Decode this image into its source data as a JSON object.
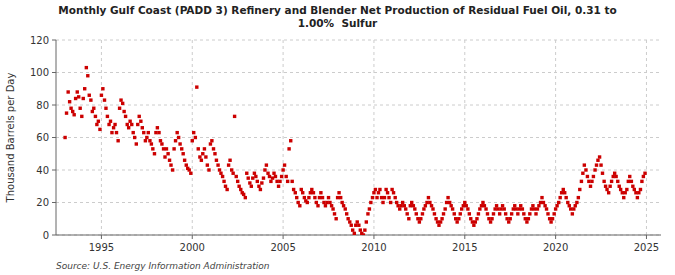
{
  "chart_data": {
    "type": "scatter",
    "title": "Monthly Gulf Coast (PADD 3) Refinery and Blender Net Production of Residual Fuel Oil, 0.31 to\n1.00%  Sulfur",
    "ylabel": "Thousand Barrels per Day",
    "annotations": [
      "Source: U.S. Energy Information Administration"
    ],
    "color": "#cc0000",
    "marker": "square",
    "grid": true,
    "xlim": [
      1992.5,
      2025.8
    ],
    "xticks": [
      1995,
      2000,
      2005,
      2010,
      2015,
      2020,
      2025
    ],
    "ylim": [
      0,
      120
    ],
    "yticks": [
      0,
      20,
      40,
      60,
      80,
      100,
      120
    ],
    "x": [
      1993.0,
      1993.08,
      1993.17,
      1993.25,
      1993.33,
      1993.42,
      1993.5,
      1993.58,
      1993.67,
      1993.75,
      1993.83,
      1993.92,
      1994.0,
      1994.08,
      1994.17,
      1994.25,
      1994.33,
      1994.42,
      1994.5,
      1994.58,
      1994.67,
      1994.75,
      1994.83,
      1994.92,
      1995.0,
      1995.08,
      1995.17,
      1995.25,
      1995.33,
      1995.42,
      1995.5,
      1995.58,
      1995.67,
      1995.75,
      1995.83,
      1995.92,
      1996.0,
      1996.08,
      1996.17,
      1996.25,
      1996.33,
      1996.42,
      1996.5,
      1996.58,
      1996.67,
      1996.75,
      1996.83,
      1996.92,
      1997.0,
      1997.08,
      1997.17,
      1997.25,
      1997.33,
      1997.42,
      1997.5,
      1997.58,
      1997.67,
      1997.75,
      1997.83,
      1997.92,
      1998.0,
      1998.08,
      1998.17,
      1998.25,
      1998.33,
      1998.42,
      1998.5,
      1998.58,
      1998.67,
      1998.75,
      1998.83,
      1998.92,
      1999.0,
      1999.08,
      1999.17,
      1999.25,
      1999.33,
      1999.42,
      1999.5,
      1999.58,
      1999.67,
      1999.75,
      1999.83,
      1999.92,
      2000.0,
      2000.08,
      2000.17,
      2000.25,
      2000.33,
      2000.42,
      2000.5,
      2000.58,
      2000.67,
      2000.75,
      2000.83,
      2000.92,
      2001.0,
      2001.08,
      2001.17,
      2001.25,
      2001.33,
      2001.42,
      2001.5,
      2001.58,
      2001.67,
      2001.75,
      2001.83,
      2001.92,
      2002.0,
      2002.08,
      2002.17,
      2002.25,
      2002.33,
      2002.42,
      2002.5,
      2002.58,
      2002.67,
      2002.75,
      2002.83,
      2002.92,
      2003.0,
      2003.08,
      2003.17,
      2003.25,
      2003.33,
      2003.42,
      2003.5,
      2003.58,
      2003.67,
      2003.75,
      2003.83,
      2003.92,
      2004.0,
      2004.08,
      2004.17,
      2004.25,
      2004.33,
      2004.42,
      2004.5,
      2004.58,
      2004.67,
      2004.75,
      2004.83,
      2004.92,
      2005.0,
      2005.08,
      2005.17,
      2005.25,
      2005.33,
      2005.42,
      2005.5,
      2005.58,
      2005.67,
      2005.75,
      2005.83,
      2005.92,
      2006.0,
      2006.08,
      2006.17,
      2006.25,
      2006.33,
      2006.42,
      2006.5,
      2006.58,
      2006.67,
      2006.75,
      2006.83,
      2006.92,
      2007.0,
      2007.08,
      2007.17,
      2007.25,
      2007.33,
      2007.42,
      2007.5,
      2007.58,
      2007.67,
      2007.75,
      2007.83,
      2007.92,
      2008.0,
      2008.08,
      2008.17,
      2008.25,
      2008.33,
      2008.42,
      2008.5,
      2008.58,
      2008.67,
      2008.75,
      2008.83,
      2008.92,
      2009.0,
      2009.08,
      2009.17,
      2009.25,
      2009.33,
      2009.42,
      2009.5,
      2009.58,
      2009.67,
      2009.75,
      2009.83,
      2009.92,
      2010.0,
      2010.08,
      2010.17,
      2010.25,
      2010.33,
      2010.42,
      2010.5,
      2010.58,
      2010.67,
      2010.75,
      2010.83,
      2010.92,
      2011.0,
      2011.08,
      2011.17,
      2011.25,
      2011.33,
      2011.42,
      2011.5,
      2011.58,
      2011.67,
      2011.75,
      2011.83,
      2011.92,
      2012.0,
      2012.08,
      2012.17,
      2012.25,
      2012.33,
      2012.42,
      2012.5,
      2012.58,
      2012.67,
      2012.75,
      2012.83,
      2012.92,
      2013.0,
      2013.08,
      2013.17,
      2013.25,
      2013.33,
      2013.42,
      2013.5,
      2013.58,
      2013.67,
      2013.75,
      2013.83,
      2013.92,
      2014.0,
      2014.08,
      2014.17,
      2014.25,
      2014.33,
      2014.42,
      2014.5,
      2014.58,
      2014.67,
      2014.75,
      2014.83,
      2014.92,
      2015.0,
      2015.08,
      2015.17,
      2015.25,
      2015.33,
      2015.42,
      2015.5,
      2015.58,
      2015.67,
      2015.75,
      2015.83,
      2015.92,
      2016.0,
      2016.08,
      2016.17,
      2016.25,
      2016.33,
      2016.42,
      2016.5,
      2016.58,
      2016.67,
      2016.75,
      2016.83,
      2016.92,
      2017.0,
      2017.08,
      2017.17,
      2017.25,
      2017.33,
      2017.42,
      2017.5,
      2017.58,
      2017.67,
      2017.75,
      2017.83,
      2017.92,
      2018.0,
      2018.08,
      2018.17,
      2018.25,
      2018.33,
      2018.42,
      2018.5,
      2018.58,
      2018.67,
      2018.75,
      2018.83,
      2018.92,
      2019.0,
      2019.08,
      2019.17,
      2019.25,
      2019.33,
      2019.42,
      2019.5,
      2019.58,
      2019.67,
      2019.75,
      2019.83,
      2019.92,
      2020.0,
      2020.08,
      2020.17,
      2020.25,
      2020.33,
      2020.42,
      2020.5,
      2020.58,
      2020.67,
      2020.75,
      2020.83,
      2020.92,
      2021.0,
      2021.08,
      2021.17,
      2021.25,
      2021.33,
      2021.42,
      2021.5,
      2021.58,
      2021.67,
      2021.75,
      2021.83,
      2021.92,
      2022.0,
      2022.08,
      2022.17,
      2022.25,
      2022.33,
      2022.42,
      2022.5,
      2022.58,
      2022.67,
      2022.75,
      2022.83,
      2022.92,
      2023.0,
      2023.08,
      2023.17,
      2023.25,
      2023.33,
      2023.42,
      2023.5,
      2023.58,
      2023.67,
      2023.75,
      2023.83,
      2023.92,
      2024.0,
      2024.08,
      2024.17,
      2024.25,
      2024.33,
      2024.42,
      2024.5,
      2024.58,
      2024.67,
      2024.75,
      2024.83,
      2024.92
    ],
    "values": [
      60,
      75,
      88,
      82,
      78,
      76,
      74,
      84,
      88,
      85,
      78,
      73,
      84,
      90,
      103,
      98,
      86,
      83,
      76,
      78,
      73,
      68,
      70,
      65,
      86,
      90,
      83,
      78,
      73,
      68,
      70,
      63,
      66,
      68,
      63,
      58,
      78,
      83,
      81,
      76,
      73,
      68,
      66,
      70,
      68,
      63,
      60,
      56,
      68,
      73,
      70,
      66,
      63,
      58,
      60,
      63,
      58,
      56,
      53,
      50,
      63,
      66,
      63,
      58,
      56,
      53,
      48,
      53,
      50,
      46,
      43,
      40,
      53,
      58,
      63,
      60,
      56,
      53,
      50,
      46,
      43,
      41,
      40,
      38,
      58,
      63,
      60,
      91,
      53,
      48,
      46,
      50,
      53,
      48,
      43,
      40,
      56,
      58,
      53,
      50,
      46,
      43,
      40,
      38,
      36,
      33,
      30,
      28,
      43,
      46,
      40,
      38,
      73,
      36,
      33,
      30,
      28,
      26,
      25,
      23,
      38,
      35,
      32,
      30,
      35,
      38,
      36,
      33,
      30,
      28,
      32,
      35,
      40,
      43,
      38,
      36,
      33,
      35,
      38,
      36,
      33,
      30,
      33,
      36,
      40,
      43,
      36,
      33,
      53,
      58,
      33,
      28,
      26,
      23,
      20,
      18,
      28,
      26,
      23,
      21,
      20,
      23,
      26,
      28,
      26,
      23,
      20,
      18,
      23,
      26,
      23,
      20,
      18,
      20,
      23,
      20,
      18,
      16,
      13,
      10,
      23,
      26,
      23,
      20,
      18,
      16,
      13,
      10,
      8,
      6,
      3,
      1,
      6,
      8,
      6,
      3,
      1,
      0,
      3,
      8,
      13,
      16,
      20,
      23,
      26,
      28,
      23,
      26,
      28,
      23,
      20,
      23,
      28,
      26,
      23,
      20,
      28,
      26,
      23,
      20,
      18,
      16,
      18,
      20,
      18,
      16,
      13,
      10,
      18,
      20,
      18,
      16,
      13,
      10,
      8,
      10,
      13,
      16,
      18,
      20,
      23,
      20,
      18,
      16,
      13,
      10,
      8,
      6,
      8,
      10,
      13,
      16,
      20,
      23,
      20,
      18,
      16,
      13,
      10,
      8,
      10,
      13,
      16,
      18,
      20,
      18,
      16,
      13,
      10,
      8,
      6,
      8,
      10,
      13,
      16,
      18,
      20,
      18,
      16,
      13,
      10,
      8,
      10,
      13,
      16,
      18,
      16,
      13,
      16,
      18,
      16,
      13,
      10,
      8,
      10,
      13,
      16,
      18,
      16,
      13,
      16,
      18,
      16,
      13,
      10,
      8,
      10,
      13,
      16,
      18,
      16,
      13,
      16,
      18,
      20,
      23,
      20,
      18,
      16,
      13,
      10,
      8,
      10,
      13,
      16,
      18,
      20,
      23,
      26,
      28,
      26,
      23,
      20,
      18,
      16,
      13,
      16,
      18,
      20,
      23,
      28,
      33,
      38,
      43,
      40,
      36,
      33,
      30,
      33,
      36,
      40,
      43,
      46,
      48,
      43,
      38,
      33,
      30,
      28,
      26,
      30,
      33,
      36,
      38,
      36,
      33,
      30,
      28,
      26,
      23,
      26,
      28,
      33,
      36,
      33,
      30,
      28,
      26,
      23,
      26,
      28,
      33,
      36,
      38
    ]
  }
}
